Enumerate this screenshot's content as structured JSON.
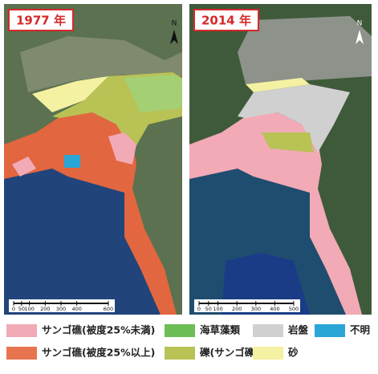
{
  "panels": [
    {
      "label": "1977 年",
      "north": "N",
      "scale_ticks": [
        0,
        50,
        100,
        200,
        300,
        400,
        600
      ]
    },
    {
      "label": "2014 年",
      "north": "N",
      "scale_ticks": [
        0,
        50,
        100,
        200,
        300,
        400,
        500
      ]
    }
  ],
  "legend": [
    {
      "label": "サンゴ礁(被度25%未満)",
      "color": "#f2aab6"
    },
    {
      "label": "海草藻類",
      "color": "#6dbd55"
    },
    {
      "label": "岩盤",
      "color": "#d0d0d0"
    },
    {
      "label": "不明",
      "color": "#2aa6d6"
    },
    {
      "label": "サンゴ礁(被度25%以上)",
      "color": "#e8744f"
    },
    {
      "label": "礫(サンゴ礫)",
      "color": "#b9c255"
    },
    {
      "label": "砂",
      "color": "#f4f1a2"
    }
  ]
}
